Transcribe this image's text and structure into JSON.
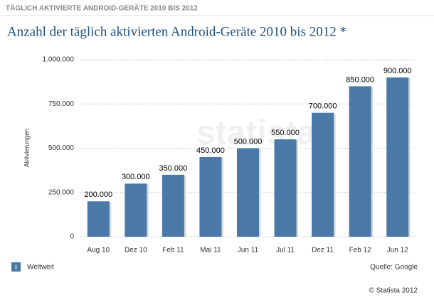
{
  "header": "TÄGLICH AKTIVIERTE ANDROID-GERÄTE 2010 BIS 2012",
  "watermark": "statista",
  "footer": {
    "info_icon": "i",
    "region": "Weltweit",
    "source": "Quelle: Google",
    "copyright": "© Statista 2012"
  },
  "chart_data": {
    "type": "bar",
    "title": "Anzahl der täglich aktivierten Android-Geräte 2010 bis 2012 *",
    "y_label": "Aktivierungen",
    "categories": [
      "Aug 10",
      "Dez 10",
      "Feb 11",
      "Mai 11",
      "Jun 11",
      "Jul 11",
      "Dez 11",
      "Feb 12",
      "Jun 12"
    ],
    "values": [
      200000,
      300000,
      350000,
      450000,
      500000,
      550000,
      700000,
      850000,
      900000
    ],
    "value_labels": [
      "200.000",
      "300.000",
      "350.000",
      "450.000",
      "500.000",
      "550.000",
      "700.000",
      "850.000",
      "900.000"
    ],
    "color": "#4a79a8",
    "ylim": [
      0,
      1000000
    ],
    "yticks": [
      0,
      {
        "value": 250000,
        "label": "250.000"
      },
      {
        "value": 500000,
        "label": "500.000"
      },
      {
        "value": 750000,
        "label": "750.000"
      },
      {
        "value": 1000000,
        "label": "1.000.000"
      }
    ],
    "grid": true
  }
}
